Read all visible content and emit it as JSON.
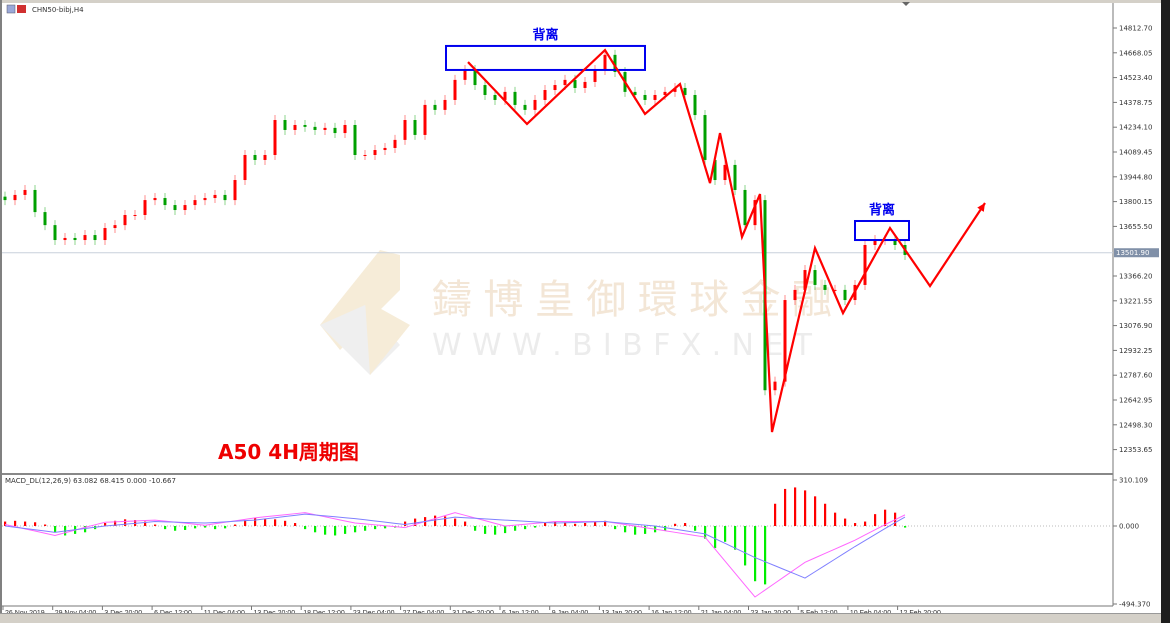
{
  "window": {
    "symbol_title": "CHN50-bibj,H4"
  },
  "watermark": {
    "brand": "鑄博皇御環球金融",
    "url": "W W W . B I B F X . N E T"
  },
  "annotations": {
    "chart_label": "A50 4H周期图",
    "divergence_label_1": "背离",
    "divergence_label_2": "背离",
    "line_color": "#ff0000",
    "box_color": "#0000ee"
  },
  "colors": {
    "up": "#ff0000",
    "down": "#00a000",
    "hist_up": "#ff0000",
    "hist_down": "#00ee00",
    "macd_line": "#ff66ff",
    "signal_line": "#8080ff",
    "price_line": "#c8d0dc"
  },
  "chart_data": [
    {
      "type": "candlestick",
      "title": "CHN50-bibj,H4",
      "ylim": [
        12281.3,
        14885.0
      ],
      "y_ticks": [
        "14812.70",
        "14668.05",
        "14523.40",
        "14378.75",
        "14234.10",
        "14089.45",
        "13944.80",
        "13800.15",
        "13655.50",
        "13366.20",
        "13221.55",
        "13076.90",
        "12932.25",
        "12787.60",
        "12642.95",
        "12498.30",
        "12353.65"
      ],
      "current_price": "13501.90",
      "x_ticks": [
        "26 Nov 2019",
        "29 Nov 04:00",
        "3 Dec 20:00",
        "6 Dec 12:00",
        "11 Dec 04:00",
        "13 Dec 20:00",
        "18 Dec 12:00",
        "23 Dec 04:00",
        "27 Dec 04:00",
        "31 Dec 20:00",
        "6 Jan 12:00",
        "9 Jan 04:00",
        "13 Jan 20:00",
        "16 Jan 12:00",
        "21 Jan 04:00",
        "23 Jan 20:00",
        "5 Feb 12:00",
        "10 Feb 04:00",
        "12 Feb 20:00"
      ],
      "closes": [
        13809,
        13839,
        13868,
        13739,
        13663,
        13576,
        13588,
        13576,
        13605,
        13576,
        13646,
        13663,
        13722,
        13722,
        13809,
        13821,
        13780,
        13751,
        13780,
        13809,
        13821,
        13839,
        13809,
        13926,
        14072,
        14043,
        14072,
        14276,
        14218,
        14247,
        14236,
        14218,
        14230,
        14200,
        14247,
        14072,
        14072,
        14101,
        14113,
        14160,
        14276,
        14189,
        14364,
        14335,
        14393,
        14510,
        14568,
        14480,
        14422,
        14393,
        14440,
        14364,
        14335,
        14393,
        14451,
        14480,
        14510,
        14463,
        14498,
        14568,
        14656,
        14556,
        14440,
        14422,
        14393,
        14422,
        14440,
        14463,
        14422,
        14305,
        14043,
        13926,
        14014,
        13868,
        13663,
        13809,
        12700,
        12750,
        13226,
        13285,
        13401,
        13314,
        13285,
        13285,
        13226,
        13314,
        13547,
        13576,
        13576,
        13547,
        13489
      ],
      "zigzag": [
        [
          46.3,
          14614
        ],
        [
          52.2,
          14253
        ],
        [
          60,
          14684
        ],
        [
          64,
          14311
        ],
        [
          67.5,
          14486
        ],
        [
          70.5,
          13908
        ],
        [
          71.5,
          14200
        ],
        [
          73.7,
          13594
        ],
        [
          75.5,
          13844
        ],
        [
          76.7,
          12456
        ],
        [
          81,
          13529
        ],
        [
          83.8,
          13150
        ],
        [
          88.5,
          13646
        ],
        [
          92.5,
          13308
        ],
        [
          98,
          13792
        ]
      ],
      "divergence_boxes": [
        {
          "from": 44.1,
          "to": 64,
          "high": 14708,
          "low": 14568
        },
        {
          "from": 85,
          "to": 90.4,
          "high": 13687,
          "low": 13576
        }
      ]
    },
    {
      "type": "bar+line",
      "title": "MACD_DL(12,26,9) 63.082 68.415 0.000 -10.667",
      "ylim": [
        -494.37,
        310.109
      ],
      "y_ticks": [
        "310.109",
        "0.000",
        "-494.370"
      ],
      "histogram": [
        30,
        35,
        30,
        25,
        10,
        -40,
        -60,
        -50,
        -40,
        -20,
        20,
        35,
        45,
        40,
        30,
        10,
        -20,
        -30,
        -25,
        -15,
        -10,
        -20,
        -15,
        10,
        40,
        55,
        50,
        45,
        35,
        20,
        -20,
        -40,
        -55,
        -60,
        -50,
        -40,
        -30,
        -20,
        -15,
        -10,
        30,
        50,
        60,
        70,
        65,
        50,
        30,
        -30,
        -50,
        -55,
        -45,
        -30,
        -20,
        -10,
        20,
        30,
        25,
        15,
        20,
        30,
        35,
        -20,
        -40,
        -55,
        -50,
        -40,
        -30,
        15,
        20,
        -30,
        -80,
        -140,
        -100,
        -150,
        -250,
        -350,
        -370,
        150,
        250,
        260,
        240,
        200,
        150,
        90,
        50,
        20,
        30,
        80,
        110,
        90,
        -10
      ],
      "macd_every5": [
        10,
        -60,
        25,
        40,
        5,
        55,
        90,
        20,
        -10,
        90,
        0,
        30,
        30,
        -20,
        -70,
        -450,
        -230,
        -90,
        75
      ],
      "signal_every5": [
        0,
        -40,
        0,
        30,
        20,
        40,
        80,
        50,
        10,
        60,
        40,
        20,
        30,
        0,
        -50,
        -200,
        -330,
        -130,
        60
      ]
    }
  ]
}
